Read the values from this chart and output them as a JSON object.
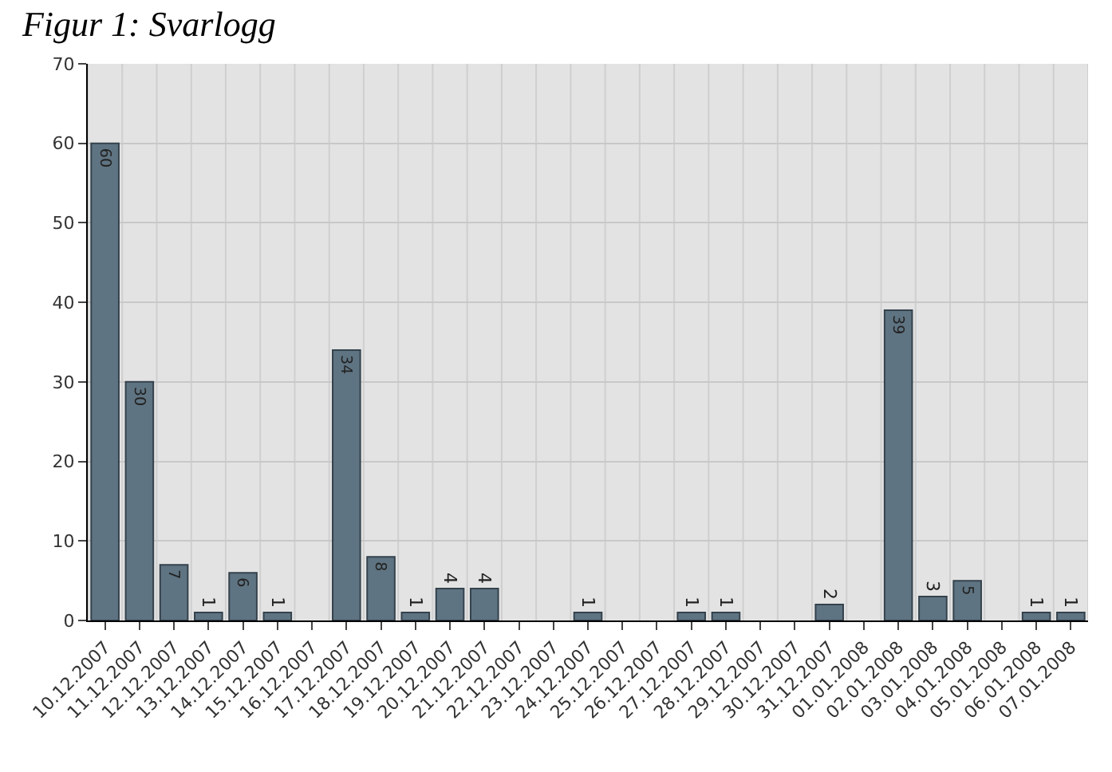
{
  "chart_data": {
    "type": "bar",
    "title": "Figur 1: Svarlogg",
    "categories": [
      "10.12.2007",
      "11.12.2007",
      "12.12.2007",
      "13.12.2007",
      "14.12.2007",
      "15.12.2007",
      "16.12.2007",
      "17.12.2007",
      "18.12.2007",
      "19.12.2007",
      "20.12.2007",
      "21.12.2007",
      "22.12.2007",
      "23.12.2007",
      "24.12.2007",
      "25.12.2007",
      "26.12.2007",
      "27.12.2007",
      "28.12.2007",
      "29.12.2007",
      "30.12.2007",
      "31.12.2007",
      "01.01.2008",
      "02.01.2008",
      "03.01.2008",
      "04.01.2008",
      "05.01.2008",
      "06.01.2008",
      "07.01.2008"
    ],
    "values": [
      60,
      30,
      7,
      1,
      6,
      1,
      0,
      34,
      8,
      1,
      4,
      4,
      0,
      0,
      1,
      0,
      0,
      1,
      1,
      0,
      0,
      2,
      0,
      39,
      3,
      5,
      0,
      1,
      1
    ],
    "value_labels": [
      "60",
      "30",
      "7",
      "1",
      "6",
      "1",
      null,
      "34",
      "8",
      "1",
      "4",
      "4",
      null,
      null,
      "1",
      null,
      null,
      "1",
      "1",
      null,
      null,
      "2",
      null,
      "39",
      "3",
      "5",
      null,
      "1",
      "1"
    ],
    "color": "#5f7482",
    "ylim": [
      0,
      70
    ],
    "yticks": [
      0,
      10,
      20,
      30,
      40,
      50,
      60,
      70
    ],
    "grid": true
  }
}
